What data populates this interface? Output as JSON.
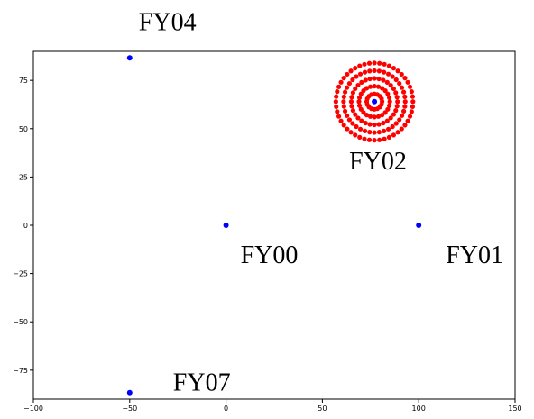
{
  "chart_data": {
    "type": "scatter",
    "xlim": [
      -100,
      150
    ],
    "ylim": [
      -90,
      90
    ],
    "x_ticks": [
      -100,
      -50,
      0,
      50,
      100,
      150
    ],
    "y_ticks": [
      -75,
      -50,
      -25,
      0,
      25,
      50,
      75
    ],
    "x_tick_labels": [
      "−100",
      "−50",
      "0",
      "50",
      "100",
      "150"
    ],
    "y_tick_labels": [
      "−75",
      "−50",
      "−25",
      "0",
      "25",
      "50",
      "75"
    ],
    "grid": false,
    "colors": {
      "anchor": "#0000ff",
      "ring": "#ff0000",
      "axes": "#000000"
    },
    "points": [
      {
        "label": "FY00",
        "x": 0,
        "y": 0
      },
      {
        "label": "FY01",
        "x": 100,
        "y": 0
      },
      {
        "label": "FY02",
        "x": 77,
        "y": 64
      },
      {
        "label": "FY04",
        "x": -50,
        "y": 86.6
      },
      {
        "label": "FY07",
        "x": -50,
        "y": -86.6
      }
    ],
    "rings": {
      "center": [
        77,
        64
      ],
      "radii": [
        4,
        8,
        12,
        16,
        20
      ],
      "points_per_ring": [
        16,
        24,
        32,
        40,
        48
      ]
    }
  }
}
